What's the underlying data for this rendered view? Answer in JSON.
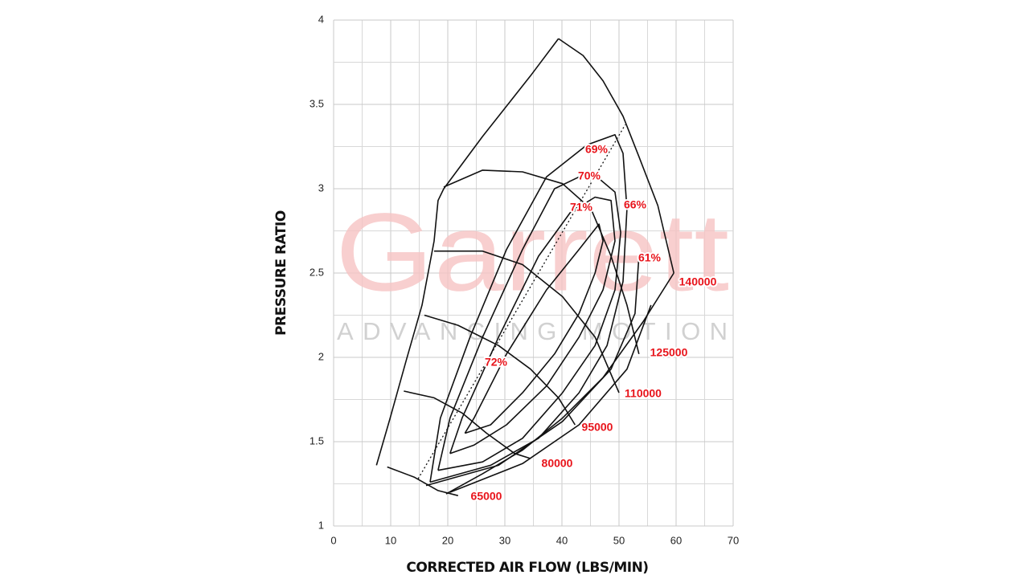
{
  "chart_data": {
    "type": "line",
    "x_label": "CORRECTED AIR FLOW (LBS/MIN)",
    "y_label": "PRESSURE RATIO",
    "watermark": "Garrett",
    "watermark_tagline": "ADVANCING MOTION",
    "xlim": [
      0,
      70
    ],
    "xticks": [
      0,
      10,
      20,
      30,
      40,
      50,
      60,
      70
    ],
    "ylim": [
      1,
      4
    ],
    "yticks": [
      1,
      1.5,
      2,
      2.5,
      3,
      3.5,
      4
    ],
    "grid": true,
    "line_color": "#111111",
    "label_color": "#e8141b",
    "surge_line": {
      "x": [
        7.5,
        9.9,
        12.7,
        15.5,
        17.6,
        18.3,
        19.3,
        26.1,
        34.5,
        39.4
      ],
      "y": [
        1.36,
        1.64,
        1.98,
        2.31,
        2.69,
        2.93,
        3.0,
        3.31,
        3.67,
        3.89
      ]
    },
    "choke_line": {
      "x": [
        19.7,
        26.1,
        33.1,
        40.1,
        47.2,
        54.2,
        59.6
      ],
      "y": [
        1.19,
        1.31,
        1.45,
        1.64,
        1.88,
        2.21,
        2.5
      ]
    },
    "peak_efficiency_line": {
      "x": [
        14.8,
        51.1
      ],
      "y": [
        1.28,
        3.38
      ]
    },
    "speed_lines": [
      {
        "name": "65000",
        "x": [
          9.4,
          14.1,
          18.3,
          21.8
        ],
        "y": [
          1.35,
          1.29,
          1.21,
          1.18
        ]
      },
      {
        "name": "80000",
        "x": [
          12.3,
          17.6,
          22.5,
          26.8,
          31.7,
          34.5
        ],
        "y": [
          1.8,
          1.76,
          1.67,
          1.55,
          1.43,
          1.4
        ]
      },
      {
        "name": "95000",
        "x": [
          15.9,
          21.8,
          28.9,
          34.5,
          39.4,
          42.3
        ],
        "y": [
          2.25,
          2.19,
          2.07,
          1.93,
          1.76,
          1.6
        ]
      },
      {
        "name": "110000",
        "x": [
          17.6,
          26.1,
          33.1,
          40.1,
          45.8,
          50.0
        ],
        "y": [
          2.63,
          2.63,
          2.55,
          2.36,
          2.12,
          1.79
        ]
      },
      {
        "name": "125000",
        "x": [
          19.3,
          26.1,
          33.1,
          40.1,
          45.1,
          48.6,
          51.4,
          53.5
        ],
        "y": [
          3.01,
          3.11,
          3.1,
          3.03,
          2.88,
          2.6,
          2.31,
          2.02
        ]
      },
      {
        "name": "140000",
        "x": [
          39.4,
          43.7,
          47.2,
          50.7,
          53.5,
          56.8,
          59.6
        ],
        "y": [
          3.89,
          3.79,
          3.64,
          3.43,
          3.19,
          2.9,
          2.5
        ]
      }
    ],
    "efficiency_islands": [
      {
        "name": "72%",
        "x": [
          23.0,
          24.6,
          30.3,
          37.3,
          43.0,
          46.5,
          47.2,
          45.8,
          43.0,
          38.7,
          33.1,
          27.5,
          23.0
        ],
        "y": [
          1.55,
          1.64,
          2.02,
          2.4,
          2.64,
          2.79,
          2.69,
          2.5,
          2.26,
          2.02,
          1.79,
          1.6,
          1.55
        ]
      },
      {
        "name": "71%",
        "x": [
          20.4,
          22.5,
          28.9,
          35.9,
          41.5,
          45.8,
          48.6,
          49.3,
          47.2,
          43.0,
          37.3,
          30.3,
          24.6,
          20.4
        ],
        "y": [
          1.43,
          1.64,
          2.12,
          2.6,
          2.86,
          2.95,
          2.93,
          2.69,
          2.4,
          2.12,
          1.83,
          1.6,
          1.48,
          1.43
        ]
      },
      {
        "name": "70%",
        "x": [
          18.3,
          20.4,
          26.1,
          33.1,
          38.7,
          43.0,
          46.5,
          49.3,
          50.3,
          49.3,
          45.8,
          40.1,
          33.1,
          26.1,
          18.3
        ],
        "y": [
          1.33,
          1.64,
          2.12,
          2.64,
          3.0,
          3.07,
          3.06,
          2.98,
          2.74,
          2.4,
          2.07,
          1.79,
          1.52,
          1.38,
          1.33
        ]
      },
      {
        "name": "69%",
        "x": [
          16.9,
          18.7,
          23.9,
          30.3,
          37.3,
          44.4,
          49.3,
          50.7,
          51.4,
          50.7,
          47.9,
          43.0,
          35.9,
          27.5,
          16.9
        ],
        "y": [
          1.26,
          1.64,
          2.12,
          2.64,
          3.07,
          3.26,
          3.32,
          3.21,
          2.88,
          2.45,
          2.07,
          1.79,
          1.52,
          1.36,
          1.26
        ]
      },
      {
        "name": "66%",
        "x": [
          16.2,
          28.9,
          40.1,
          48.6,
          52.8,
          53.5
        ],
        "y": [
          1.24,
          1.36,
          1.62,
          1.93,
          2.26,
          2.6
        ]
      },
      {
        "name": "61%",
        "x": [
          20.4,
          33.1,
          43.0,
          51.4,
          55.6
        ],
        "y": [
          1.2,
          1.37,
          1.6,
          1.93,
          2.31
        ]
      }
    ]
  }
}
